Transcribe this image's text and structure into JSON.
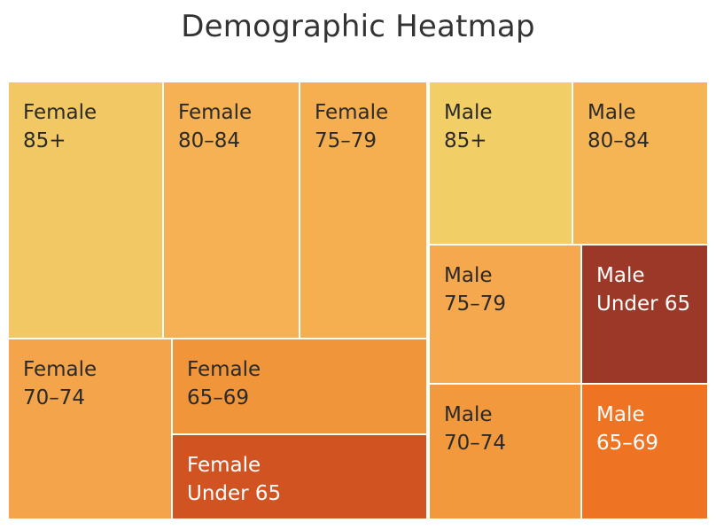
{
  "chart_data": {
    "type": "treemap",
    "title": "Demographic Heatmap",
    "groups": [
      {
        "name": "Female",
        "cells": [
          {
            "gender": "Female",
            "age": "85+",
            "color": "#F2C865"
          },
          {
            "gender": "Female",
            "age": "80–84",
            "color": "#F5B153"
          },
          {
            "gender": "Female",
            "age": "75–79",
            "color": "#F5AF51"
          },
          {
            "gender": "Female",
            "age": "70–74",
            "color": "#F4A44A"
          },
          {
            "gender": "Female",
            "age": "65–69",
            "color": "#F09539"
          },
          {
            "gender": "Female",
            "age": "Under 65",
            "color": "#D25322"
          }
        ]
      },
      {
        "name": "Male",
        "cells": [
          {
            "gender": "Male",
            "age": "85+",
            "color": "#F1CE66"
          },
          {
            "gender": "Male",
            "age": "80–84",
            "color": "#F5B555"
          },
          {
            "gender": "Male",
            "age": "75–79",
            "color": "#F5A84D"
          },
          {
            "gender": "Male",
            "age": "Under 65",
            "color": "#9C3827"
          },
          {
            "gender": "Male",
            "age": "70–74",
            "color": "#F2993D"
          },
          {
            "gender": "Male",
            "age": "65–69",
            "color": "#EE7322"
          }
        ]
      }
    ]
  }
}
